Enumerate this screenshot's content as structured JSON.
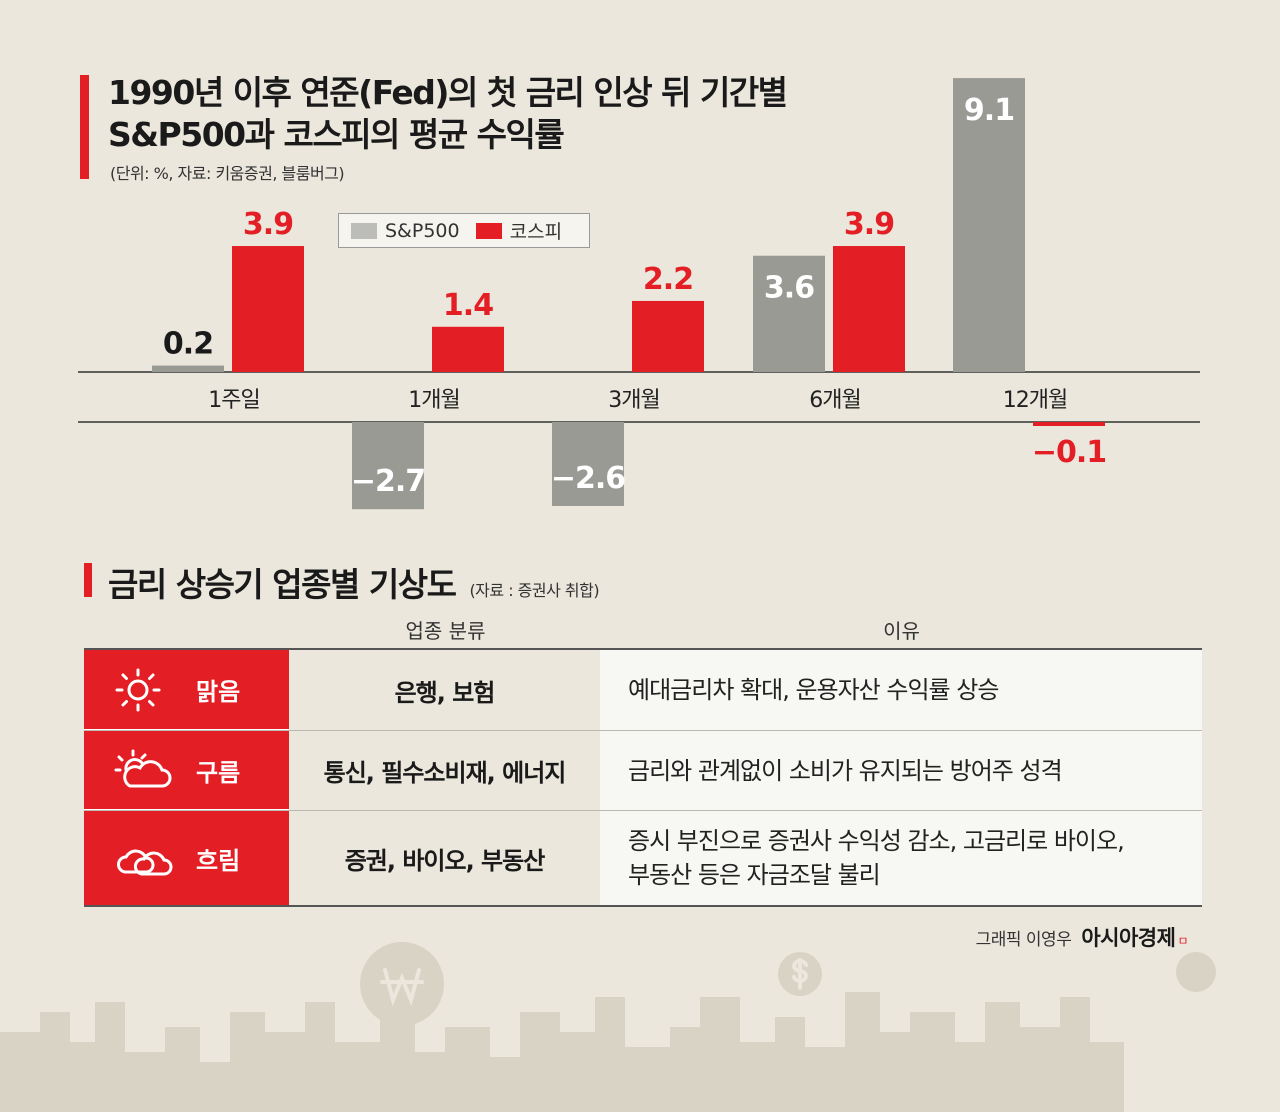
{
  "title_line1": "1990년 이후 연준(Fed)의 첫 금리 인상 뒤 기간별",
  "title_line2": "S&P500과 코스피의 평균 수익률",
  "subtitle": "(단위: %, 자료: 키움증권, 블룸버그)",
  "legend": [
    {
      "name": "S&P500",
      "color": "#9a9a94"
    },
    {
      "name": "코스피",
      "color": "#e31e24"
    }
  ],
  "chart_data": {
    "type": "bar",
    "categories": [
      "1주일",
      "1개월",
      "3개월",
      "6개월",
      "12개월"
    ],
    "series": [
      {
        "name": "S&P500",
        "values": [
          0.2,
          -2.7,
          -2.6,
          3.6,
          9.1
        ],
        "color": "#9a9a94",
        "label_color": "#1a1a1a",
        "neg_label_color": "#ffffff"
      },
      {
        "name": "코스피",
        "values": [
          3.9,
          1.4,
          2.2,
          3.9,
          -0.1
        ],
        "color": "#e31e24",
        "label_color": "#e31e24",
        "neg_label_color": "#e31e24"
      }
    ],
    "value_labels": [
      [
        "0.2",
        "−2.7",
        "−2.6",
        "3.6",
        "9.1"
      ],
      [
        "3.9",
        "1.4",
        "2.2",
        "3.9",
        "−0.1"
      ]
    ],
    "ylim": [
      -3.0,
      9.1
    ]
  },
  "section": {
    "title": "금리 상승기 업종별 기상도",
    "source": "(자료 : 증권사 취합)",
    "col_sector": "업종 분류",
    "col_reason": "이유",
    "rows": [
      {
        "icon": "sun-icon",
        "weather": "맑음",
        "sectors": "은행, 보험",
        "reason": "예대금리차 확대, 운용자산 수익률 상승"
      },
      {
        "icon": "partly-cloudy-icon",
        "weather": "구름",
        "sectors": "통신, 필수소비재, 에너지",
        "reason": "금리와 관계없이 소비가 유지되는 방어주 성격"
      },
      {
        "icon": "cloud-icon",
        "weather": "흐림",
        "sectors": "증권, 바이오, 부동산",
        "reason_line1": "증시 부진으로 증권사 수익성 감소, 고금리로 바이오,",
        "reason_line2": "부동산 등은 자금조달 불리"
      }
    ]
  },
  "credit": {
    "text": "그래픽 이영우",
    "brand": "아시아경제",
    "brand_mark": "ㅁ"
  },
  "colors": {
    "accent": "#e31e24",
    "gray_bar": "#9a9a94",
    "background": "#ebe7dc"
  }
}
